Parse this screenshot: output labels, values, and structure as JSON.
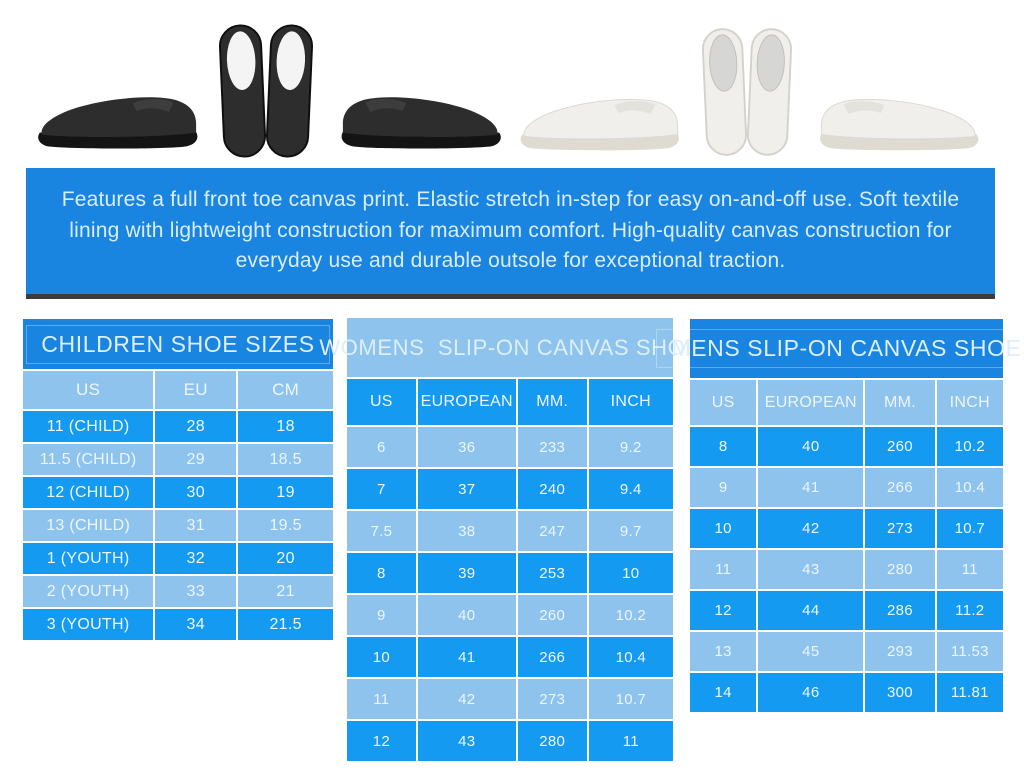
{
  "product_gallery": {
    "images": [
      "black-slip-on-side-view-left",
      "black-slip-on-top-view-pair",
      "black-slip-on-side-view-right",
      "white-slip-on-side-view-left",
      "white-slip-on-top-view-pair",
      "white-slip-on-side-view-right"
    ]
  },
  "description_banner": {
    "text": "Features a full front toe canvas print. Elastic stretch in-step for easy on-and-off use. Soft textile lining with lightweight construction for maximum comfort. High-quality canvas construction for everyday use and durable outsole for exceptional traction."
  },
  "colors": {
    "banner_blue": "#1a85e0",
    "table_dark_blue": "#149bf1",
    "table_light_blue": "#8dc3ec",
    "text_light": "#ecf6fd",
    "banner_shadow": "#3c3c3c",
    "black_shoe": "#2d2d2d",
    "white_shoe": "#f0efeb"
  },
  "size_charts": {
    "children": {
      "title": "CHILDREN SHOE SIZES",
      "columns": [
        "US",
        "EU",
        "CM"
      ],
      "rows": [
        [
          "11 (CHILD)",
          "28",
          "18"
        ],
        [
          "11.5 (CHILD)",
          "29",
          "18.5"
        ],
        [
          "12 (CHILD)",
          "30",
          "19"
        ],
        [
          "13 (CHILD)",
          "31",
          "19.5"
        ],
        [
          "1 (YOUTH)",
          "32",
          "20"
        ],
        [
          "2 (YOUTH)",
          "33",
          "21"
        ],
        [
          "3 (YOUTH)",
          "34",
          "21.5"
        ]
      ]
    },
    "womens": {
      "title": "WOMENS  SLIP-ON CANVAS SHOE",
      "columns": [
        "US",
        "EUROPEAN",
        "MM.",
        "INCH"
      ],
      "rows": [
        [
          "6",
          "36",
          "233",
          "9.2"
        ],
        [
          "7",
          "37",
          "240",
          "9.4"
        ],
        [
          "7.5",
          "38",
          "247",
          "9.7"
        ],
        [
          "8",
          "39",
          "253",
          "10"
        ],
        [
          "9",
          "40",
          "260",
          "10.2"
        ],
        [
          "10",
          "41",
          "266",
          "10.4"
        ],
        [
          "11",
          "42",
          "273",
          "10.7"
        ],
        [
          "12",
          "43",
          "280",
          "11"
        ]
      ]
    },
    "mens": {
      "title": "MENS SLIP-ON CANVAS SHOE",
      "columns": [
        "US",
        "EUROPEAN",
        "MM.",
        "INCH"
      ],
      "rows": [
        [
          "8",
          "40",
          "260",
          "10.2"
        ],
        [
          "9",
          "41",
          "266",
          "10.4"
        ],
        [
          "10",
          "42",
          "273",
          "10.7"
        ],
        [
          "11",
          "43",
          "280",
          "11"
        ],
        [
          "12",
          "44",
          "286",
          "11.2"
        ],
        [
          "13",
          "45",
          "293",
          "11.53"
        ],
        [
          "14",
          "46",
          "300",
          "11.81"
        ]
      ]
    }
  }
}
